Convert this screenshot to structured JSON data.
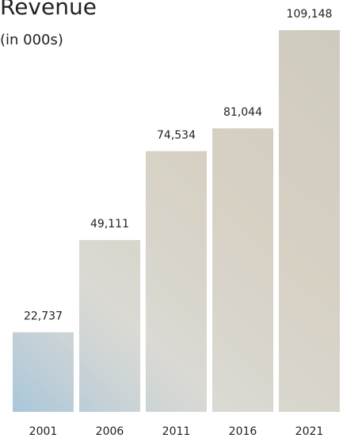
{
  "chart_data": {
    "type": "bar",
    "title": "Revenue",
    "subtitle": "(in 000s)",
    "categories": [
      "2001",
      "2006",
      "2011",
      "2016",
      "2021"
    ],
    "values": [
      22737,
      49111,
      74534,
      81044,
      109148
    ],
    "value_labels": [
      "22,737",
      "49,111",
      "74,534",
      "81,044",
      "109,148"
    ],
    "color": "#d8d5cc"
  }
}
